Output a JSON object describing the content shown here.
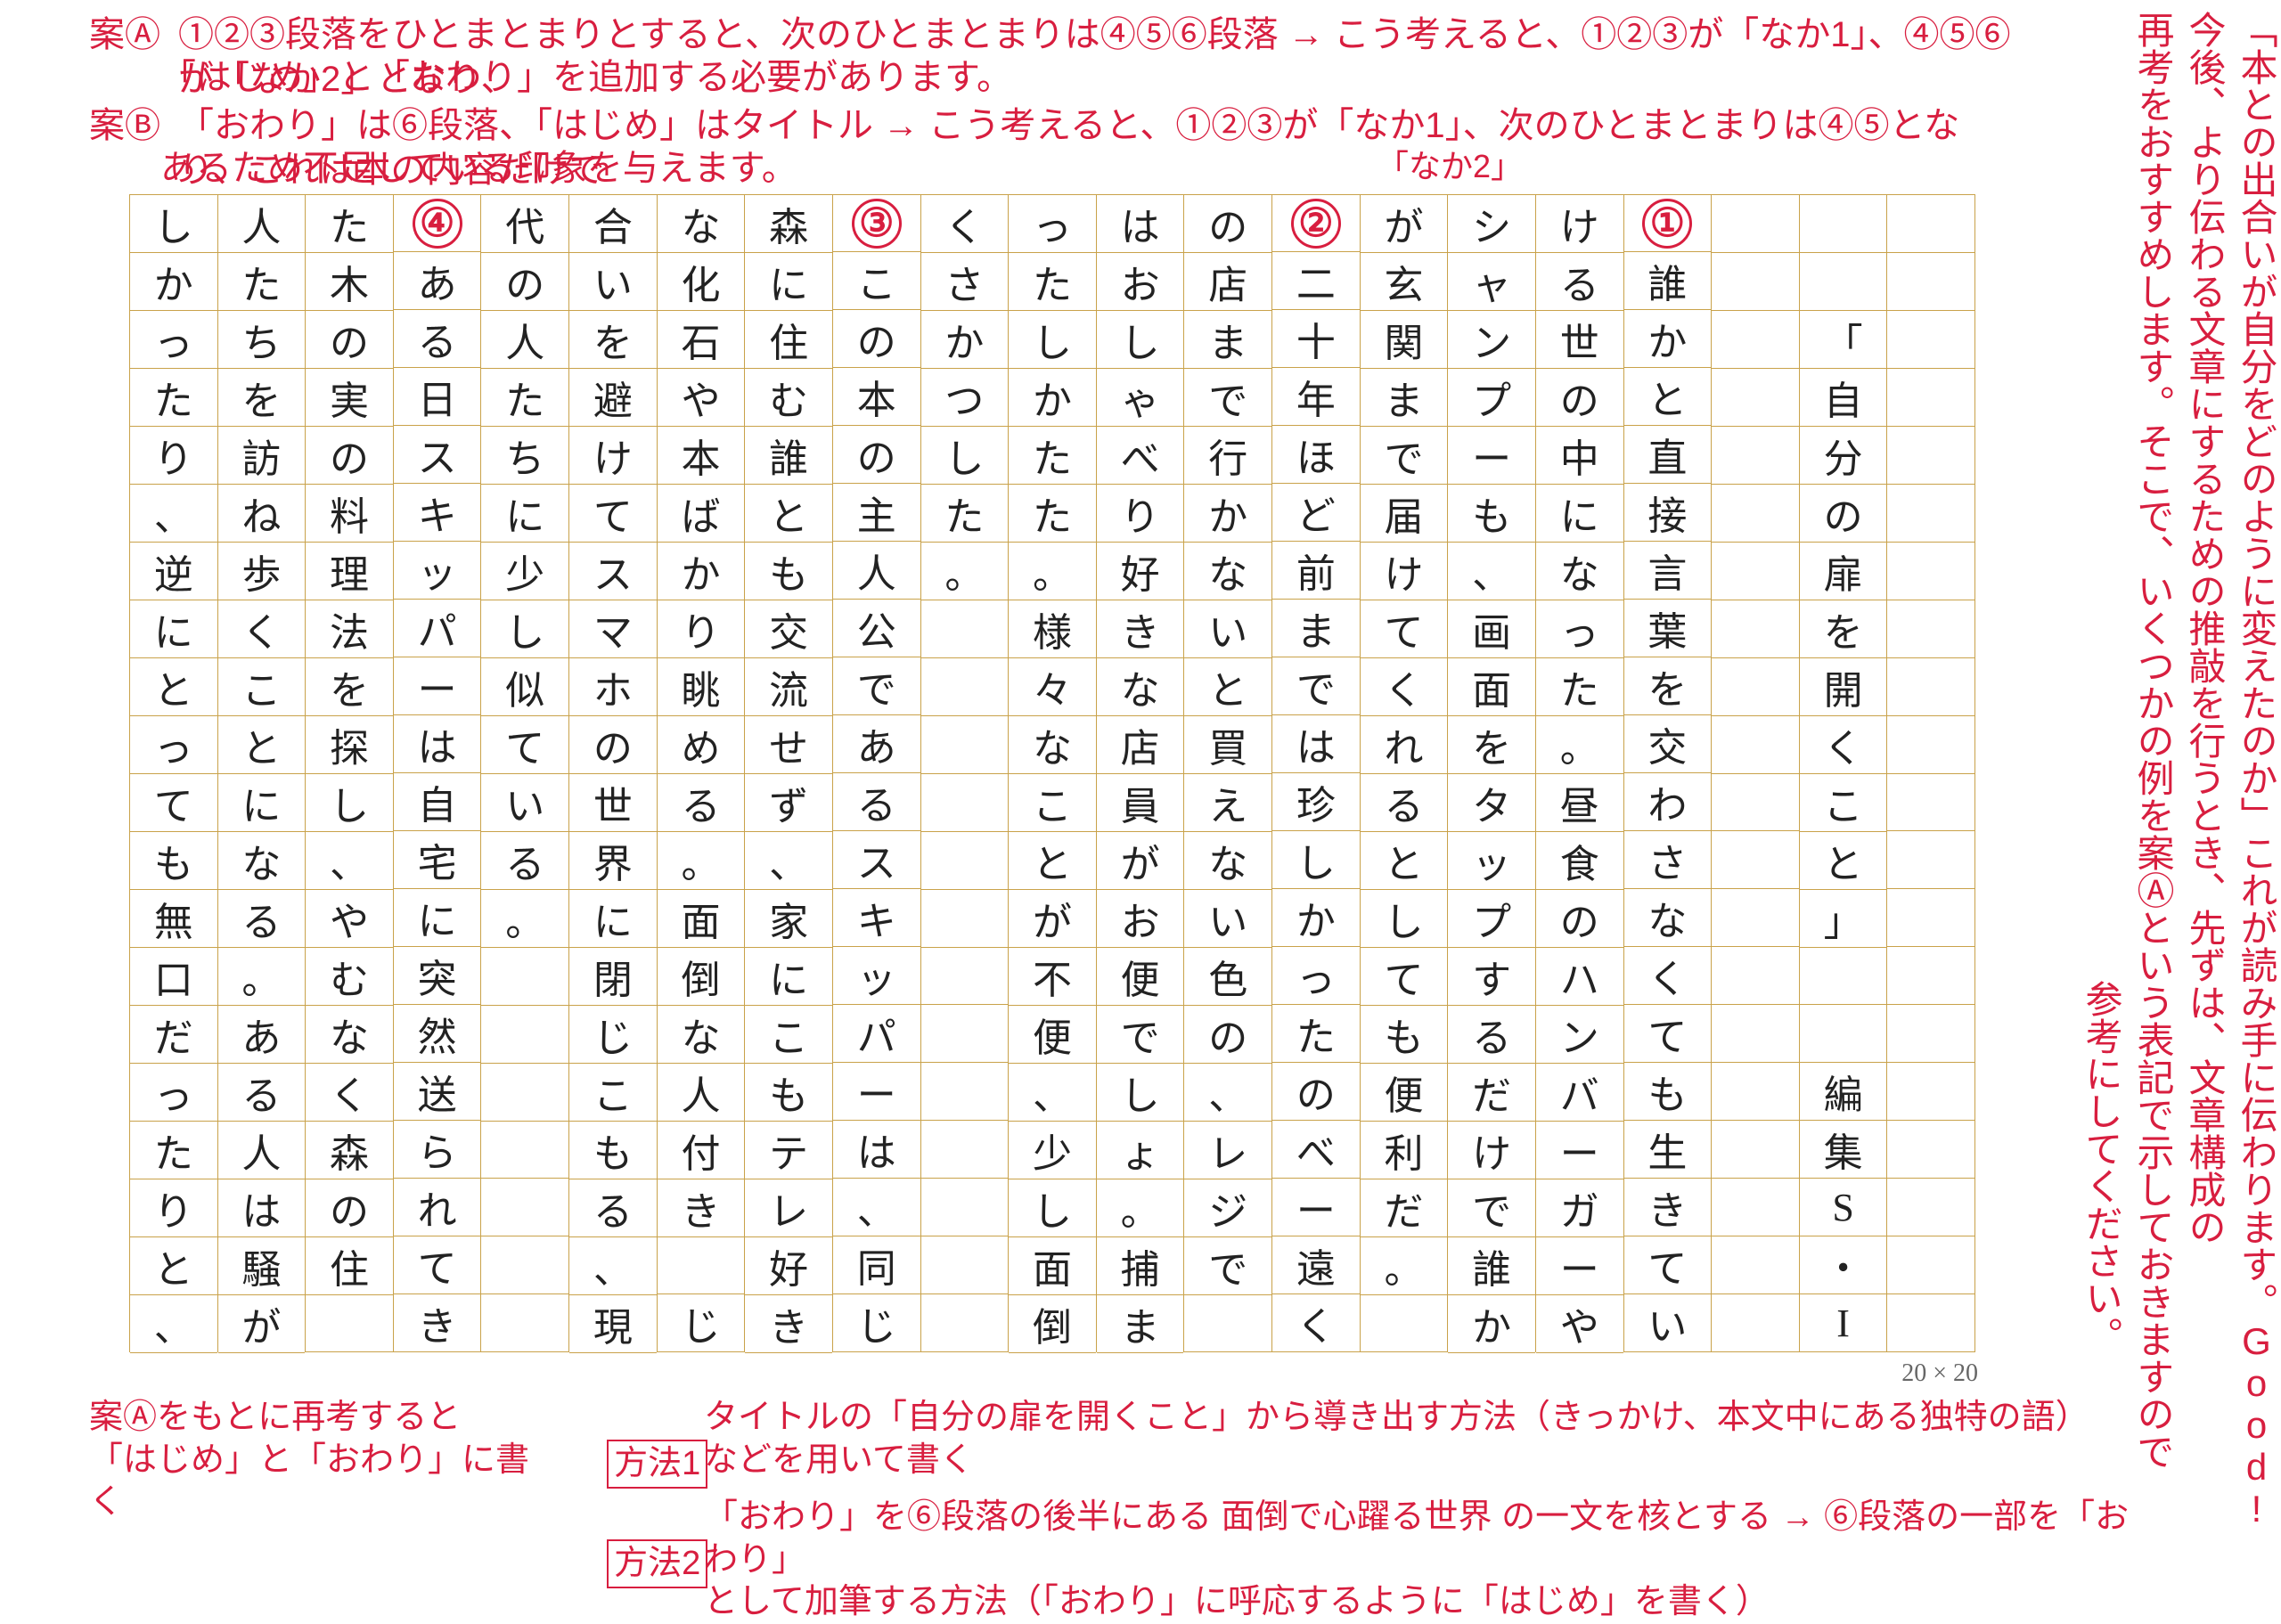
{
  "page": {
    "dim_label": "20 × 20",
    "grid_border_color": "#c9a24a",
    "cell_text_color": "#222222",
    "annotation_color": "#d81e3f",
    "font_size_cell": 44,
    "font_size_annotation_h": 40,
    "font_size_annotation_v": 42,
    "circled_markers": [
      "①",
      "②",
      "③",
      "④"
    ]
  },
  "right_vertical": {
    "line1": "「本との出合いが自分をどのように変えたのか」これが読み手に伝わります。Good!",
    "line2": "今後、より伝わる文章にするための推敲を行うとき、先ずは、文章構成の",
    "line3": "再考をおすすめします。そこで、いくつかの例を案Ⓐという表記で示しておきますので",
    "line4": "参考にしてください。"
  },
  "top_horizontal": {
    "caseA_label": "案Ⓐ",
    "caseA_line1": "①②③段落をひとまとまりとすると、次のひとまとまりは④⑤⑥段落 → こう考えると、①②③が「なか1」、④⑤⑥が「なか2」となり、",
    "caseA_line2": "「はじめ」と「おわり」を追加する必要があります。",
    "caseB_label": "案Ⓑ",
    "caseB_line1": "「おわり」は⑥段落、「はじめ」はタイトル → こう考えると、①②③が「なか1」、次のひとまとまりは④⑤となり、これは本の内容だけで",
    "caseB_line2": "あるため不足している印象を与えます。",
    "naka2_label": "「なか2」"
  },
  "bottom_horizontal": {
    "intro": "案Ⓐをもとに再考すると\n「はじめ」と「おわり」に書く",
    "method1_label": "方法1",
    "method1_text": "タイトルの「自分の扉を開くこと」から導き出す方法（きっかけ、本文中にある独特の語）\nなどを用いて書く",
    "method2_label": "方法2",
    "method2_text": "「おわり」を⑥段落の後半にある 面倒で心躍る世界 の一文を核とする → ⑥段落の一部を「おわり」\nとして加筆する方法（「おわり」に呼応するように「はじめ」を書く）"
  },
  "grid_columns": [
    [
      "",
      "",
      "",
      "",
      "",
      "",
      "",
      "",
      "",
      "",
      "",
      "",
      "",
      "",
      "",
      "",
      "",
      "",
      "",
      ""
    ],
    [
      "",
      "",
      "「",
      "自",
      "分",
      "の",
      "扉",
      "を",
      "開",
      "く",
      "こ",
      "と",
      "」",
      "",
      "",
      "編",
      "集",
      "S",
      "・",
      "I"
    ],
    [
      "",
      "",
      "",
      "",
      "",
      "",
      "",
      "",
      "",
      "",
      "",
      "",
      "",
      "",
      "",
      "",
      "",
      "",
      "",
      ""
    ],
    [
      "①",
      "誰",
      "か",
      "と",
      "直",
      "接",
      "言",
      "葉",
      "を",
      "交",
      "わ",
      "さ",
      "な",
      "く",
      "て",
      "も",
      "生",
      "き",
      "て",
      "い"
    ],
    [
      "け",
      "る",
      "世",
      "の",
      "中",
      "に",
      "な",
      "っ",
      "た",
      "。",
      "昼",
      "食",
      "の",
      "ハ",
      "ン",
      "バ",
      "ー",
      "ガ",
      "ー",
      "や"
    ],
    [
      "シ",
      "ャ",
      "ン",
      "プ",
      "ー",
      "も",
      "、",
      "画",
      "面",
      "を",
      "タ",
      "ッ",
      "プ",
      "す",
      "る",
      "だ",
      "け",
      "で",
      "誰",
      "か"
    ],
    [
      "が",
      "玄",
      "関",
      "ま",
      "で",
      "届",
      "け",
      "て",
      "く",
      "れ",
      "る",
      "と",
      "し",
      "て",
      "も",
      "便",
      "利",
      "だ",
      "。",
      ""
    ],
    [
      "②",
      "二",
      "十",
      "年",
      "ほ",
      "ど",
      "前",
      "ま",
      "で",
      "は",
      "珍",
      "し",
      "か",
      "っ",
      "た",
      "の",
      "べ",
      "ー",
      "遠",
      "く"
    ],
    [
      "の",
      "店",
      "ま",
      "で",
      "行",
      "か",
      "な",
      "い",
      "と",
      "買",
      "え",
      "な",
      "い",
      "色",
      "の",
      "、",
      "レ",
      "ジ",
      "で",
      ""
    ],
    [
      "は",
      "お",
      "し",
      "ゃ",
      "べ",
      "り",
      "好",
      "き",
      "な",
      "店",
      "員",
      "が",
      "お",
      "便",
      "で",
      "し",
      "ょ",
      "。",
      "捕",
      "ま"
    ],
    [
      "っ",
      "た",
      "し",
      "か",
      "た",
      "た",
      "。",
      "様",
      "々",
      "な",
      "こ",
      "と",
      "が",
      "不",
      "便",
      "、",
      "少",
      "し",
      "面",
      "倒"
    ],
    [
      "く",
      "さ",
      "か",
      "つ",
      "し",
      "た",
      "。",
      "",
      "",
      "",
      "",
      "",
      "",
      "",
      "",
      "",
      "",
      "",
      "",
      ""
    ],
    [
      "③",
      "こ",
      "の",
      "本",
      "の",
      "主",
      "人",
      "公",
      "で",
      "あ",
      "る",
      "ス",
      "キ",
      "ッ",
      "パ",
      "ー",
      "は",
      "、",
      "同",
      "じ"
    ],
    [
      "森",
      "に",
      "住",
      "む",
      "誰",
      "と",
      "も",
      "交",
      "流",
      "せ",
      "ず",
      "、",
      "家",
      "に",
      "こ",
      "も",
      "テ",
      "レ",
      "好",
      "き"
    ],
    [
      "な",
      "化",
      "石",
      "や",
      "本",
      "ば",
      "か",
      "り",
      "眺",
      "め",
      "る",
      "。",
      "面",
      "倒",
      "な",
      "人",
      "付",
      "き",
      "",
      "じ"
    ],
    [
      "合",
      "い",
      "を",
      "避",
      "け",
      "て",
      "ス",
      "マ",
      "ホ",
      "の",
      "世",
      "界",
      "に",
      "閉",
      "じ",
      "こ",
      "も",
      "る",
      "、",
      "現"
    ],
    [
      "代",
      "の",
      "人",
      "た",
      "ち",
      "に",
      "少",
      "し",
      "似",
      "て",
      "い",
      "る",
      "。",
      "",
      "",
      "",
      "",
      "",
      "",
      ""
    ],
    [
      "④",
      "あ",
      "る",
      "日",
      "ス",
      "キ",
      "ッ",
      "パ",
      "ー",
      "は",
      "自",
      "宅",
      "に",
      "突",
      "然",
      "送",
      "ら",
      "れ",
      "て",
      "き"
    ],
    [
      "た",
      "木",
      "の",
      "実",
      "の",
      "料",
      "理",
      "法",
      "を",
      "探",
      "し",
      "、",
      "や",
      "む",
      "な",
      "く",
      "森",
      "の",
      "住",
      ""
    ],
    [
      "人",
      "た",
      "ち",
      "を",
      "訪",
      "ね",
      "歩",
      "く",
      "こ",
      "と",
      "に",
      "な",
      "る",
      "。",
      "あ",
      "る",
      "人",
      "は",
      "騒",
      "が"
    ],
    [
      "し",
      "か",
      "っ",
      "た",
      "り",
      "、",
      "逆",
      "に",
      "と",
      "っ",
      "て",
      "も",
      "無",
      "口",
      "だ",
      "っ",
      "た",
      "り",
      "と",
      "、"
    ]
  ]
}
